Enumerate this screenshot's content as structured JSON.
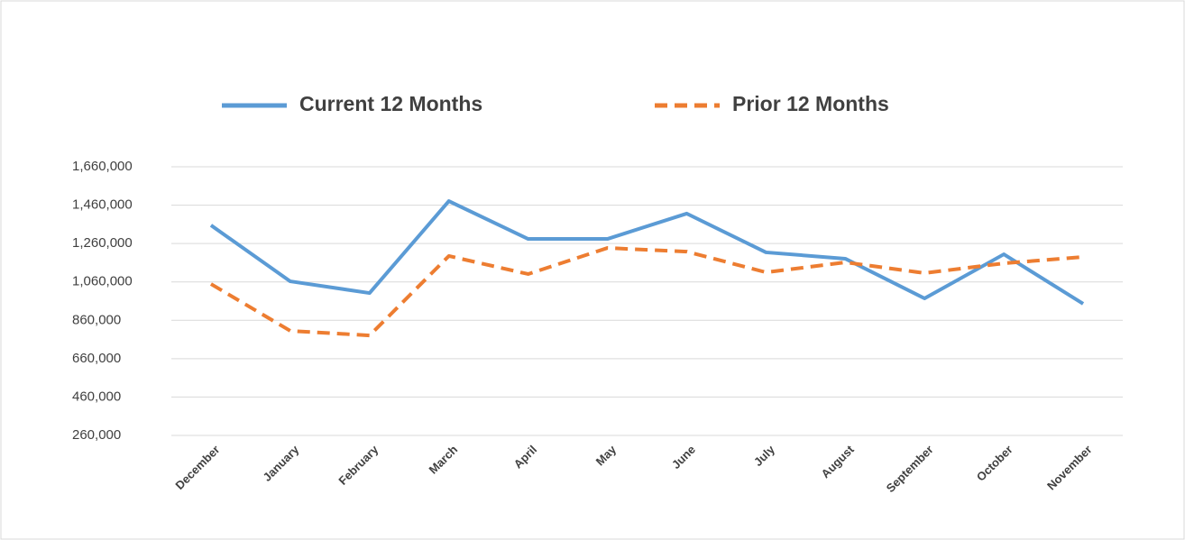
{
  "chart_data": {
    "type": "line",
    "categories": [
      "December",
      "January",
      "February",
      "March",
      "April",
      "May",
      "June",
      "July",
      "August",
      "September",
      "October",
      "November"
    ],
    "series": [
      {
        "name": "Current 12 Months",
        "color": "#5b9bd5",
        "dash": false,
        "values": [
          1355000,
          1063000,
          1002000,
          1481000,
          1284000,
          1284000,
          1416000,
          1214000,
          1181000,
          974000,
          1204000,
          946000
        ]
      },
      {
        "name": "Prior 12 Months",
        "color": "#ed7d31",
        "dash": true,
        "values": [
          1049000,
          805000,
          781000,
          1195000,
          1101000,
          1237000,
          1218000,
          1110000,
          1162000,
          1106000,
          1157000,
          1190000
        ]
      }
    ],
    "ylim": [
      260000,
      1660000
    ],
    "yticks": [
      {
        "value": 260000,
        "label": "260,000"
      },
      {
        "value": 460000,
        "label": "460,000"
      },
      {
        "value": 660000,
        "label": "660,000"
      },
      {
        "value": 860000,
        "label": "860,000"
      },
      {
        "value": 1060000,
        "label": "1,060,000"
      },
      {
        "value": 1260000,
        "label": "1,260,000"
      },
      {
        "value": 1460000,
        "label": "1,460,000"
      },
      {
        "value": 1660000,
        "label": "1,660,000"
      }
    ],
    "grid": true,
    "legend": "top"
  }
}
